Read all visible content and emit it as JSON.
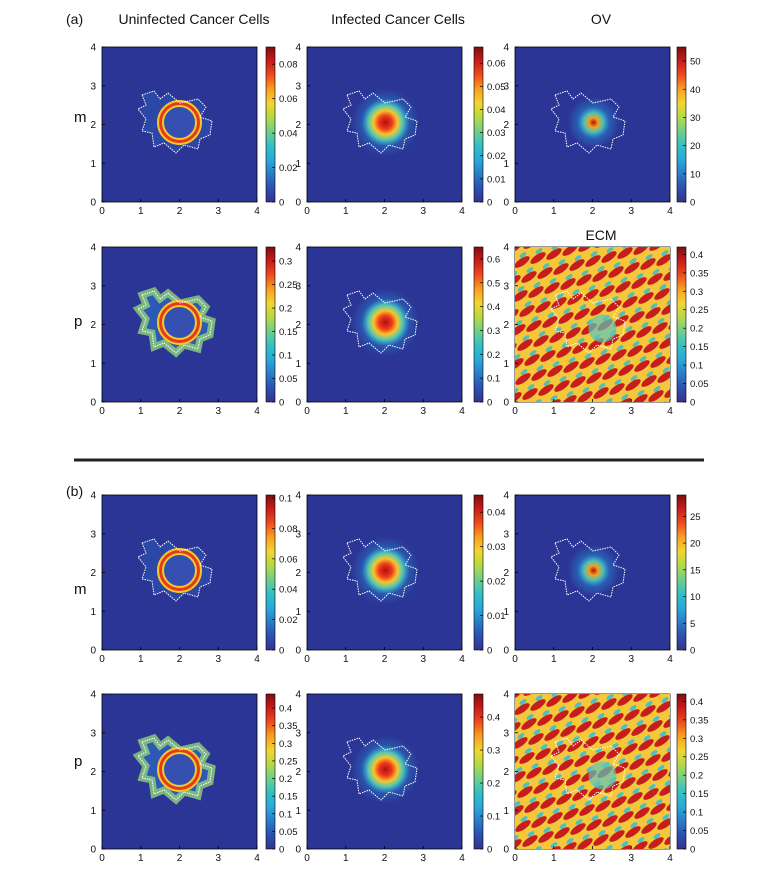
{
  "figure": {
    "columns": [
      "Uninfected Cancer Cells",
      "Infected Cancer Cells",
      "OV"
    ],
    "row_labels": [
      "m",
      "p"
    ],
    "panel_labels": [
      "(a)",
      "(b)"
    ],
    "ecm_title": "ECM"
  },
  "colors": {
    "background_field": "#2b3595",
    "boundary": "#ffffff",
    "separator": "#222222",
    "colormap": [
      "#36348c",
      "#2c4fb0",
      "#2a7dc9",
      "#2aa8d8",
      "#33c0c4",
      "#6fcf8a",
      "#b5d947",
      "#f3d531",
      "#f8a021",
      "#ee4d1d",
      "#c81c1c",
      "#7d0f0f"
    ]
  },
  "chart_data": [
    {
      "type": "heatmap",
      "panel": "(a)",
      "row": "m",
      "column": "Uninfected Cancer Cells",
      "x_ticks": [
        "0",
        "1",
        "2",
        "3",
        "4"
      ],
      "y_ticks": [
        "0",
        "1",
        "2",
        "3",
        "4"
      ],
      "colorbar_ticks": [
        "0",
        "0.02",
        "0.04",
        "0.06",
        "0.08"
      ],
      "colorbar_range": [
        0,
        0.09
      ],
      "pattern": "ring"
    },
    {
      "type": "heatmap",
      "panel": "(a)",
      "row": "m",
      "column": "Infected Cancer Cells",
      "x_ticks": [
        "0",
        "1",
        "2",
        "3",
        "4"
      ],
      "y_ticks": [
        "0",
        "1",
        "2",
        "3",
        "4"
      ],
      "colorbar_ticks": [
        "0",
        "0.01",
        "0.02",
        "0.03",
        "0.04",
        "0.05",
        "0.06"
      ],
      "colorbar_range": [
        0,
        0.067
      ],
      "pattern": "peak"
    },
    {
      "type": "heatmap",
      "panel": "(a)",
      "row": "m",
      "column": "OV",
      "x_ticks": [
        "0",
        "1",
        "2",
        "3",
        "4"
      ],
      "y_ticks": [
        "0",
        "1",
        "2",
        "3",
        "4"
      ],
      "colorbar_ticks": [
        "0",
        "10",
        "20",
        "30",
        "40",
        "50"
      ],
      "colorbar_range": [
        0,
        55
      ],
      "pattern": "small-peak"
    },
    {
      "type": "heatmap",
      "panel": "(a)",
      "row": "p",
      "column": "Uninfected Cancer Cells",
      "x_ticks": [
        "0",
        "1",
        "2",
        "3",
        "4"
      ],
      "y_ticks": [
        "0",
        "1",
        "2",
        "3",
        "4"
      ],
      "colorbar_ticks": [
        "0",
        "0.05",
        "0.1",
        "0.15",
        "0.2",
        "0.25",
        "0.3"
      ],
      "colorbar_range": [
        0,
        0.33
      ],
      "pattern": "scatter-ring"
    },
    {
      "type": "heatmap",
      "panel": "(a)",
      "row": "p",
      "column": "Infected Cancer Cells",
      "x_ticks": [
        "0",
        "1",
        "2",
        "3",
        "4"
      ],
      "y_ticks": [
        "0",
        "1",
        "2",
        "3",
        "4"
      ],
      "colorbar_ticks": [
        "0",
        "0.1",
        "0.2",
        "0.3",
        "0.4",
        "0.5",
        "0.6"
      ],
      "colorbar_range": [
        0,
        0.65
      ],
      "pattern": "peak"
    },
    {
      "type": "heatmap",
      "panel": "(a)",
      "row": "p",
      "column": "ECM",
      "x_ticks": [
        "0",
        "1",
        "2",
        "3",
        "4"
      ],
      "y_ticks": [
        "0",
        "1",
        "2",
        "3",
        "4"
      ],
      "colorbar_ticks": [
        "0",
        "0.05",
        "0.1",
        "0.15",
        "0.2",
        "0.25",
        "0.3",
        "0.35",
        "0.4"
      ],
      "colorbar_range": [
        0,
        0.42
      ],
      "pattern": "ecm"
    },
    {
      "type": "heatmap",
      "panel": "(b)",
      "row": "m",
      "column": "Uninfected Cancer Cells",
      "x_ticks": [
        "0",
        "1",
        "2",
        "3",
        "4"
      ],
      "y_ticks": [
        "0",
        "1",
        "2",
        "3",
        "4"
      ],
      "colorbar_ticks": [
        "0",
        "0.02",
        "0.04",
        "0.06",
        "0.08",
        "0.1"
      ],
      "colorbar_range": [
        0,
        0.102
      ],
      "pattern": "ring"
    },
    {
      "type": "heatmap",
      "panel": "(b)",
      "row": "m",
      "column": "Infected Cancer Cells",
      "x_ticks": [
        "0",
        "1",
        "2",
        "3",
        "4"
      ],
      "y_ticks": [
        "0",
        "1",
        "2",
        "3",
        "4"
      ],
      "colorbar_ticks": [
        "0",
        "0.01",
        "0.02",
        "0.03",
        "0.04"
      ],
      "colorbar_range": [
        0,
        0.045
      ],
      "pattern": "peak"
    },
    {
      "type": "heatmap",
      "panel": "(b)",
      "row": "m",
      "column": "OV",
      "x_ticks": [
        "0",
        "1",
        "2",
        "3",
        "4"
      ],
      "y_ticks": [
        "0",
        "1",
        "2",
        "3",
        "4"
      ],
      "colorbar_ticks": [
        "0",
        "5",
        "10",
        "15",
        "20",
        "25"
      ],
      "colorbar_range": [
        0,
        29
      ],
      "pattern": "small-peak"
    },
    {
      "type": "heatmap",
      "panel": "(b)",
      "row": "p",
      "column": "Uninfected Cancer Cells",
      "x_ticks": [
        "0",
        "1",
        "2",
        "3",
        "4"
      ],
      "y_ticks": [
        "0",
        "1",
        "2",
        "3",
        "4"
      ],
      "colorbar_ticks": [
        "0",
        "0.05",
        "0.1",
        "0.15",
        "0.2",
        "0.25",
        "0.3",
        "0.35",
        "0.4"
      ],
      "colorbar_range": [
        0,
        0.44
      ],
      "pattern": "scatter-ring"
    },
    {
      "type": "heatmap",
      "panel": "(b)",
      "row": "p",
      "column": "Infected Cancer Cells",
      "x_ticks": [
        "0",
        "1",
        "2",
        "3",
        "4"
      ],
      "y_ticks": [
        "0",
        "1",
        "2",
        "3",
        "4"
      ],
      "colorbar_ticks": [
        "0",
        "0.1",
        "0.2",
        "0.3",
        "0.4"
      ],
      "colorbar_range": [
        0,
        0.47
      ],
      "pattern": "peak"
    },
    {
      "type": "heatmap",
      "panel": "(b)",
      "row": "p",
      "column": "ECM",
      "x_ticks": [
        "0",
        "1",
        "2",
        "3",
        "4"
      ],
      "y_ticks": [
        "0",
        "1",
        "2",
        "3",
        "4"
      ],
      "colorbar_ticks": [
        "0",
        "0.05",
        "0.1",
        "0.15",
        "0.2",
        "0.25",
        "0.3",
        "0.35",
        "0.4"
      ],
      "colorbar_range": [
        0,
        0.42
      ],
      "pattern": "ecm"
    }
  ]
}
